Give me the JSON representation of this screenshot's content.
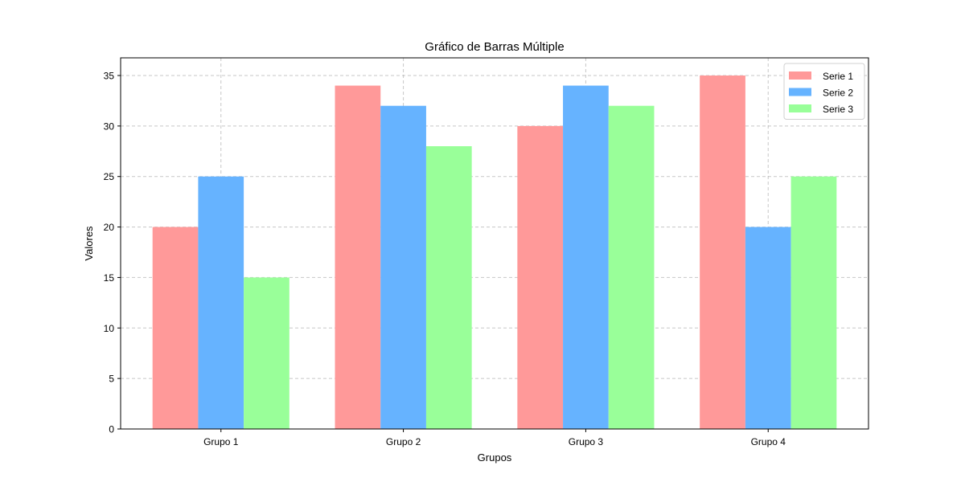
{
  "chart_data": {
    "type": "bar",
    "title": "Gráfico de Barras Múltiple",
    "xlabel": "Grupos",
    "ylabel": "Valores",
    "categories": [
      "Grupo 1",
      "Grupo 2",
      "Grupo 3",
      "Grupo 4"
    ],
    "series": [
      {
        "name": "Serie 1",
        "color": "#ff9999",
        "values": [
          20,
          34,
          30,
          35
        ]
      },
      {
        "name": "Serie 2",
        "color": "#66b3ff",
        "values": [
          25,
          32,
          34,
          20
        ]
      },
      {
        "name": "Serie 3",
        "color": "#99ff99",
        "values": [
          15,
          28,
          32,
          25
        ]
      }
    ],
    "ylim": [
      0,
      36.75
    ],
    "yticks": [
      "0",
      "5",
      "10",
      "15",
      "20",
      "25",
      "30",
      "35"
    ],
    "grid": true,
    "grid_style": "dashed",
    "legend_position": "top-right"
  }
}
